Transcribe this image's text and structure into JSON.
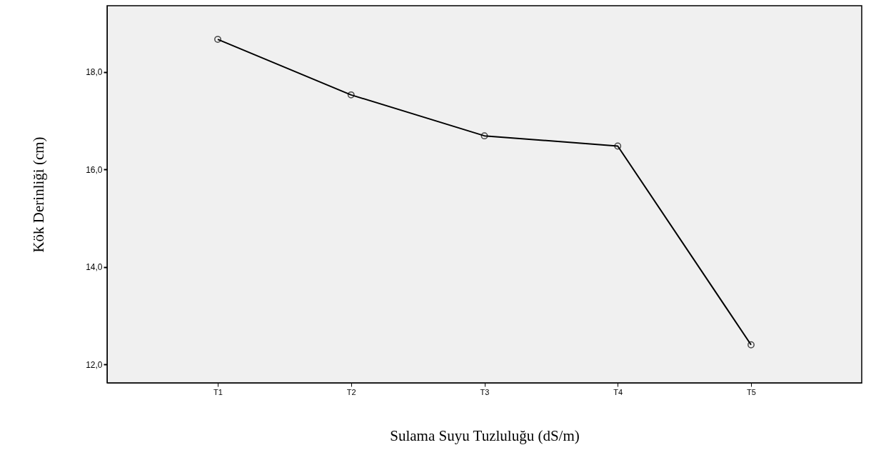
{
  "chart_data": {
    "type": "line",
    "xlabel": "Sulama Suyu Tuzluluğu (dS/m)",
    "ylabel": "Kök Derinliği (cm)",
    "categories": [
      "T1",
      "T2",
      "T3",
      "T4",
      "T5"
    ],
    "series": [
      {
        "color": "#000000",
        "values": [
          18.67,
          17.53,
          16.69,
          16.48,
          12.4
        ]
      }
    ],
    "ylim": [
      11.62,
      19.36
    ],
    "yticks": [
      {
        "value": 12,
        "label": "12,0"
      },
      {
        "value": 14,
        "label": "14,0"
      },
      {
        "value": 16,
        "label": "16,0"
      },
      {
        "value": 18,
        "label": "18,0"
      }
    ],
    "marker": "circle",
    "line_style": "solid",
    "grid": false
  }
}
